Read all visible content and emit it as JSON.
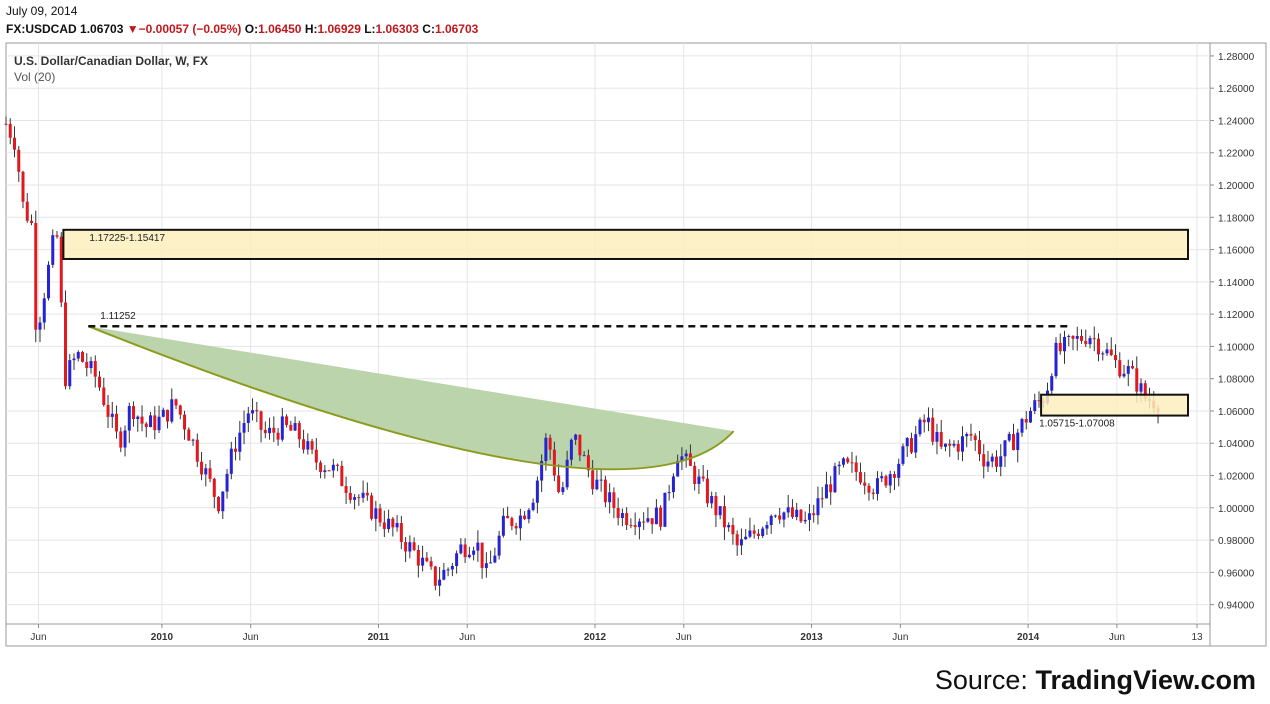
{
  "header": {
    "date": "July 09, 2014",
    "symbol": "FX:USDCAD",
    "last": "1.06703",
    "change": "−0.00057 (−0.05%)",
    "open_label": "O:",
    "open": "1.06450",
    "high_label": "H:",
    "high": "1.06929",
    "low_label": "L:",
    "low": "1.06303",
    "close_label": "C:",
    "close": "1.06703"
  },
  "source": {
    "prefix": "Source: ",
    "brand": "TradingView.com"
  },
  "colors": {
    "up": "#2424d4",
    "down": "#e0191f",
    "zone_fill": "#fdefbd",
    "cup_fill": "#b7d2a8",
    "cup_stroke": "#8c9b1e",
    "grid": "#e5e5e5"
  },
  "chart_data": {
    "type": "candlestick",
    "title": "U.S. Dollar/Canadian Dollar, W, FX",
    "indicator": "Vol (20)",
    "ylim": [
      0.928,
      1.288
    ],
    "y_ticks": [
      "1.28000",
      "1.26000",
      "1.24000",
      "1.22000",
      "1.20000",
      "1.18000",
      "1.16000",
      "1.14000",
      "1.12000",
      "1.10000",
      "1.08000",
      "1.06000",
      "1.04000",
      "1.02000",
      "1.00000",
      "0.98000",
      "0.96000",
      "0.94000"
    ],
    "x_ticks": [
      {
        "label": "Jun",
        "t": 0.15,
        "bold": false
      },
      {
        "label": "2010",
        "t": 0.72,
        "bold": true
      },
      {
        "label": "Jun",
        "t": 1.13,
        "bold": false
      },
      {
        "label": "2011",
        "t": 1.72,
        "bold": true
      },
      {
        "label": "Jun",
        "t": 2.13,
        "bold": false
      },
      {
        "label": "2012",
        "t": 2.72,
        "bold": true
      },
      {
        "label": "Jun",
        "t": 3.13,
        "bold": false
      },
      {
        "label": "2013",
        "t": 3.72,
        "bold": true
      },
      {
        "label": "Jun",
        "t": 4.13,
        "bold": false
      },
      {
        "label": "2014",
        "t": 4.72,
        "bold": true
      },
      {
        "label": "Jun",
        "t": 5.13,
        "bold": false
      },
      {
        "label": "13",
        "t": 5.5,
        "bold": false
      }
    ],
    "x_range": [
      0.0,
      5.56
    ],
    "keypoints": [
      [
        0.0,
        1.238
      ],
      [
        0.05,
        1.225
      ],
      [
        0.07,
        1.19
      ],
      [
        0.12,
        1.175
      ],
      [
        0.14,
        1.108
      ],
      [
        0.22,
        1.165
      ],
      [
        0.24,
        1.168
      ],
      [
        0.27,
        1.08
      ],
      [
        0.33,
        1.095
      ],
      [
        0.42,
        1.08
      ],
      [
        0.52,
        1.04
      ],
      [
        0.58,
        1.064
      ],
      [
        0.64,
        1.05
      ],
      [
        0.72,
        1.055
      ],
      [
        0.78,
        1.065
      ],
      [
        0.85,
        1.045
      ],
      [
        0.92,
        1.022
      ],
      [
        0.98,
        1.003
      ],
      [
        1.06,
        1.04
      ],
      [
        1.12,
        1.06
      ],
      [
        1.2,
        1.045
      ],
      [
        1.28,
        1.05
      ],
      [
        1.35,
        1.045
      ],
      [
        1.42,
        1.03
      ],
      [
        1.5,
        1.025
      ],
      [
        1.6,
        1.01
      ],
      [
        1.72,
        0.995
      ],
      [
        1.8,
        0.985
      ],
      [
        1.9,
        0.97
      ],
      [
        1.98,
        0.955
      ],
      [
        2.04,
        0.962
      ],
      [
        2.1,
        0.975
      ],
      [
        2.17,
        0.98
      ],
      [
        2.22,
        0.958
      ],
      [
        2.3,
        0.99
      ],
      [
        2.38,
        0.995
      ],
      [
        2.44,
        1.01
      ],
      [
        2.5,
        1.045
      ],
      [
        2.56,
        1.005
      ],
      [
        2.62,
        1.045
      ],
      [
        2.7,
        1.02
      ],
      [
        2.78,
        1.005
      ],
      [
        2.85,
        0.995
      ],
      [
        2.95,
        0.995
      ],
      [
        3.03,
        0.995
      ],
      [
        3.1,
        1.035
      ],
      [
        3.18,
        1.02
      ],
      [
        3.25,
        1.005
      ],
      [
        3.32,
        0.99
      ],
      [
        3.38,
        0.975
      ],
      [
        3.46,
        0.985
      ],
      [
        3.55,
        1.0
      ],
      [
        3.62,
        0.995
      ],
      [
        3.7,
        0.99
      ],
      [
        3.78,
        1.01
      ],
      [
        3.86,
        1.025
      ],
      [
        3.94,
        1.022
      ],
      [
        4.02,
        1.012
      ],
      [
        4.1,
        1.025
      ],
      [
        4.18,
        1.04
      ],
      [
        4.25,
        1.055
      ],
      [
        4.32,
        1.035
      ],
      [
        4.4,
        1.04
      ],
      [
        4.46,
        1.045
      ],
      [
        4.52,
        1.03
      ],
      [
        4.58,
        1.03
      ],
      [
        4.65,
        1.042
      ],
      [
        4.73,
        1.06
      ],
      [
        4.8,
        1.07
      ],
      [
        4.84,
        1.095
      ],
      [
        4.9,
        1.1
      ],
      [
        4.96,
        1.105
      ],
      [
        5.0,
        1.108
      ],
      [
        5.06,
        1.1
      ],
      [
        5.12,
        1.09
      ],
      [
        5.18,
        1.085
      ],
      [
        5.22,
        1.078
      ],
      [
        5.26,
        1.068
      ],
      [
        5.32,
        1.066
      ]
    ],
    "annotations": [
      {
        "type": "zone",
        "label": "1.17225-1.15417",
        "top": 1.17225,
        "bottom": 1.15417,
        "t1": 0.265,
        "t2": 5.56,
        "label_pos": "top-left"
      },
      {
        "type": "zone",
        "label": "1.05715-1.07008",
        "top": 1.07008,
        "bottom": 1.05715,
        "t1": 4.78,
        "t2": 5.56,
        "label_pos": "below"
      },
      {
        "type": "hline",
        "label": "1.11252",
        "value": 1.11252,
        "t1": 0.38,
        "t2": 4.92,
        "style": "dashed"
      },
      {
        "type": "cup",
        "apex_t": 0.38,
        "apex_v": 1.11252,
        "end_t": 3.36,
        "end_v": 1.0475,
        "bottom_t": 2.38,
        "bottom_v": 1.029
      }
    ]
  }
}
